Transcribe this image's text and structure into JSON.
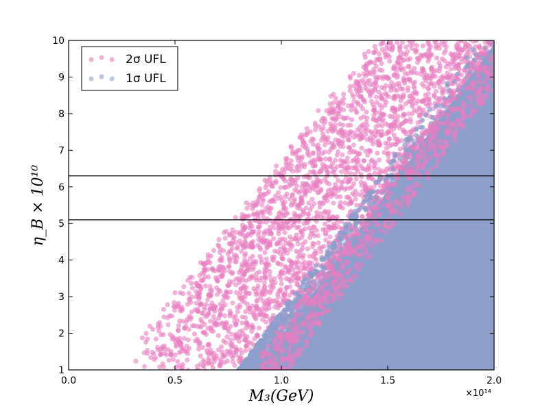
{
  "chart_data": {
    "type": "scatter",
    "xlabel": "M₃(GeV)",
    "ylabel": "η_B × 10¹⁰",
    "x_multiplier": "×10¹⁴",
    "xlim": [
      0.0,
      2.0
    ],
    "ylim": [
      1,
      10
    ],
    "xticks": [
      "0.0",
      "0.5",
      "1.0",
      "1.5",
      "2.0"
    ],
    "yticks": [
      "1",
      "2",
      "3",
      "4",
      "5",
      "6",
      "7",
      "8",
      "9",
      "10"
    ],
    "hlines": [
      5.1,
      6.3
    ],
    "legend_position": "top-left",
    "series": [
      {
        "name": "2σ UFL",
        "color": "#e77fc2",
        "x_range": [
          0.3,
          2.0
        ],
        "y_range": [
          1,
          10
        ],
        "description_of_density": "dense band rising from lower-left to upper-right; sparse near x=0.3-0.5"
      },
      {
        "name": "1σ UFL",
        "color": "#8d9fcb",
        "x_range": [
          0.7,
          2.0
        ],
        "y_range": [
          1,
          10
        ],
        "description_of_density": "solid fill in lower-right region bounded approx by y ≈ 1 + 8*(x-0.9)/1.1"
      }
    ]
  }
}
